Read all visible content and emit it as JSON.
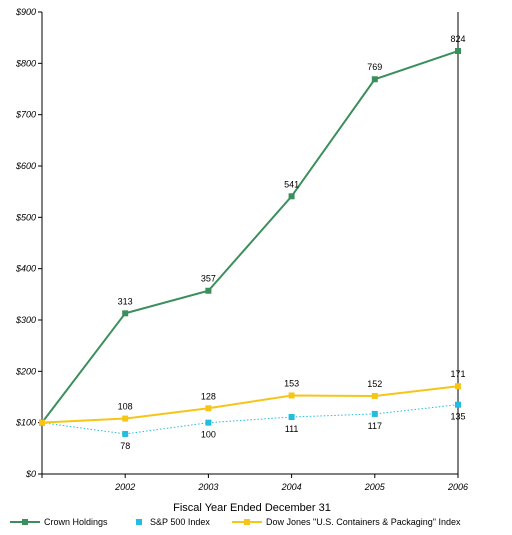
{
  "chart_data": {
    "type": "line",
    "title": "",
    "xlabel": "Fiscal Year Ended December 31",
    "ylabel": "",
    "x": [
      "2001",
      "2002",
      "2003",
      "2004",
      "2005",
      "2006"
    ],
    "x_tick_labels": [
      "",
      "2002",
      "2003",
      "2004",
      "2005",
      "2006"
    ],
    "ylim": [
      0,
      900
    ],
    "y_ticks": [
      0,
      100,
      200,
      300,
      400,
      500,
      600,
      700,
      800,
      900
    ],
    "y_tick_labels": [
      "$0",
      "$100",
      "$200",
      "$300",
      "$400",
      "$500",
      "$600",
      "$700",
      "$800",
      "$900"
    ],
    "grid": false,
    "legend_position": "bottom",
    "series": [
      {
        "name": "Crown Holdings",
        "values": [
          100,
          313,
          357,
          541,
          769,
          824
        ],
        "labels": [
          "",
          "313",
          "357",
          "541",
          "769",
          "824"
        ],
        "color": "#3a8f5c",
        "style": "solid",
        "label_position": "above"
      },
      {
        "name": "S&P 500 Index",
        "values": [
          100,
          78,
          100,
          111,
          117,
          135
        ],
        "labels": [
          "",
          "78",
          "100",
          "111",
          "117",
          "135"
        ],
        "color": "#22bde0",
        "style": "dotted",
        "label_position": "below"
      },
      {
        "name": "Dow Jones \"U.S. Containers & Packaging\" Index",
        "values": [
          100,
          108,
          128,
          153,
          152,
          171
        ],
        "labels": [
          "",
          "108",
          "128",
          "153",
          "152",
          "171"
        ],
        "color": "#f5c518",
        "style": "solid",
        "label_position": "above"
      }
    ]
  }
}
